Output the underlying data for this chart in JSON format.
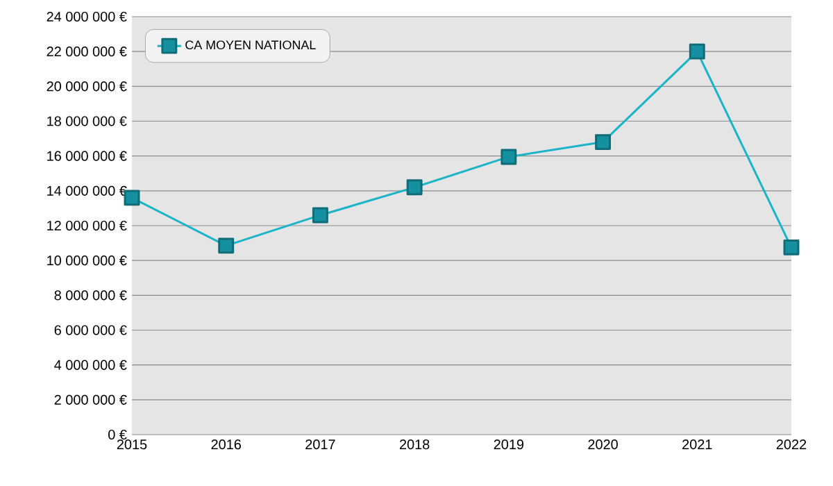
{
  "chart_data": {
    "type": "line",
    "x": [
      2015,
      2016,
      2017,
      2018,
      2019,
      2020,
      2021,
      2022
    ],
    "series": [
      {
        "name": "CA MOYEN NATIONAL",
        "color": "#1ab4c8",
        "values": [
          13600000,
          10850000,
          12600000,
          14200000,
          15950000,
          16800000,
          22000000,
          10750000
        ]
      }
    ],
    "xlim": [
      2015,
      2022
    ],
    "xticks": [
      2015,
      2016,
      2017,
      2018,
      2019,
      2020,
      2021,
      2022
    ],
    "ylim": [
      0,
      24000000
    ],
    "yticks": [
      {
        "value": 0,
        "label": "0 €"
      },
      {
        "value": 2000000,
        "label": "2 000 000 €"
      },
      {
        "value": 4000000,
        "label": "4 000 000 €"
      },
      {
        "value": 6000000,
        "label": "6 000 000 €"
      },
      {
        "value": 8000000,
        "label": "8 000 000 €"
      },
      {
        "value": 10000000,
        "label": "10 000 000 €"
      },
      {
        "value": 12000000,
        "label": "12 000 000 €"
      },
      {
        "value": 14000000,
        "label": "14 000 000 €"
      },
      {
        "value": 16000000,
        "label": "16 000 000 €"
      },
      {
        "value": 18000000,
        "label": "18 000 000 €"
      },
      {
        "value": 20000000,
        "label": "20 000 000 €"
      },
      {
        "value": 22000000,
        "label": "22 000 000 €"
      },
      {
        "value": 24000000,
        "label": "24 000 000 €"
      }
    ],
    "grid": "y",
    "legend": "top left",
    "marker": "square",
    "line_style": "solid"
  }
}
